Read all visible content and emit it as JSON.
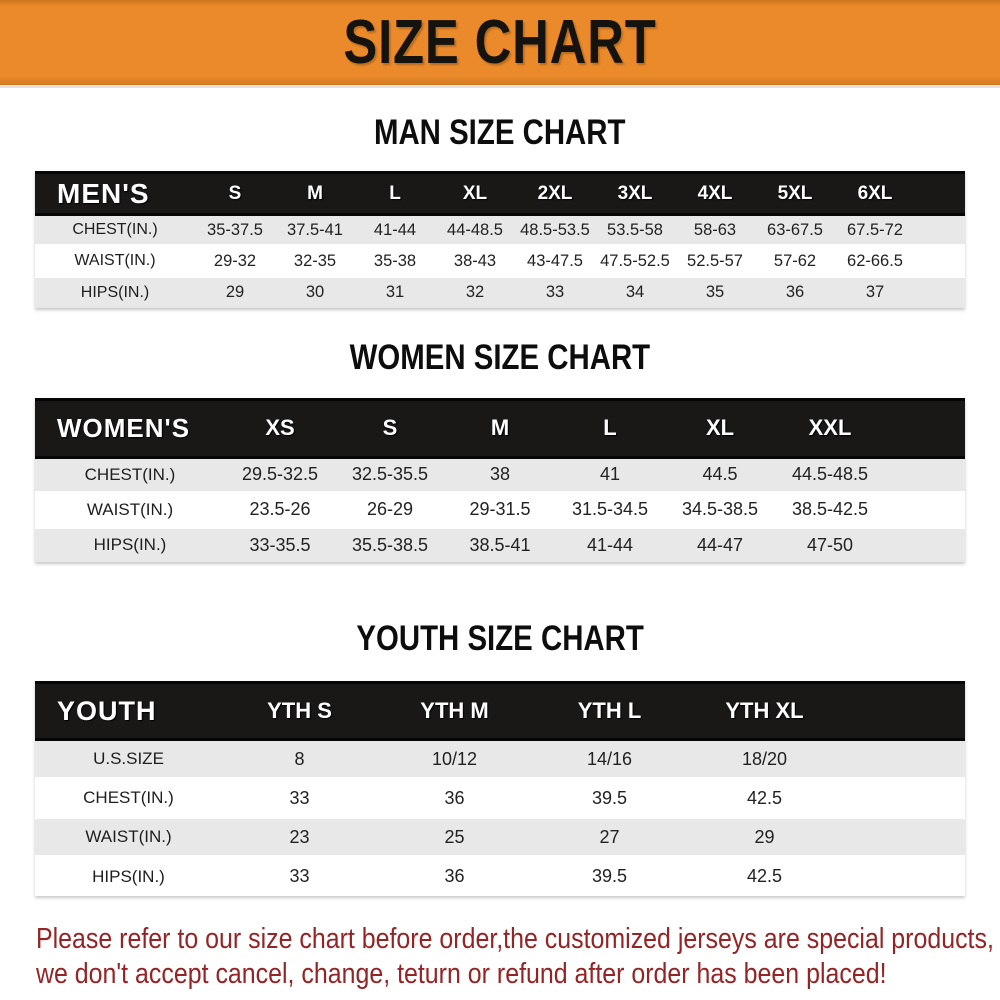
{
  "banner": {
    "title": "SIZE CHART"
  },
  "colors": {
    "banner_bg": "#EA8A2B",
    "header_band_bg": "#1a1717",
    "row_alt_bg": "#E8E8E8",
    "footer_text": "#942425"
  },
  "sections": [
    {
      "heading": "MAN SIZE CHART",
      "table": {
        "corner_label": "MEN'S",
        "columns": [
          "S",
          "M",
          "L",
          "XL",
          "2XL",
          "3XL",
          "4XL",
          "5XL",
          "6XL"
        ],
        "rows": [
          {
            "label": "CHEST(IN.)",
            "values": [
              "35-37.5",
              "37.5-41",
              "41-44",
              "44-48.5",
              "48.5-53.5",
              "53.5-58",
              "58-63",
              "63-67.5",
              "67.5-72"
            ]
          },
          {
            "label": "WAIST(IN.)",
            "values": [
              "29-32",
              "32-35",
              "35-38",
              "38-43",
              "43-47.5",
              "47.5-52.5",
              "52.5-57",
              "57-62",
              "62-66.5"
            ]
          },
          {
            "label": "HIPS(IN.)",
            "values": [
              "29",
              "30",
              "31",
              "32",
              "33",
              "34",
              "35",
              "36",
              "37"
            ]
          }
        ]
      }
    },
    {
      "heading": "WOMEN SIZE CHART",
      "table": {
        "corner_label": "WOMEN'S",
        "columns": [
          "XS",
          "S",
          "M",
          "L",
          "XL",
          "XXL"
        ],
        "rows": [
          {
            "label": "CHEST(IN.)",
            "values": [
              "29.5-32.5",
              "32.5-35.5",
              "38",
              "41",
              "44.5",
              "44.5-48.5"
            ]
          },
          {
            "label": "WAIST(IN.)",
            "values": [
              "23.5-26",
              "26-29",
              "29-31.5",
              "31.5-34.5",
              "34.5-38.5",
              "38.5-42.5"
            ]
          },
          {
            "label": "HIPS(IN.)",
            "values": [
              "33-35.5",
              "35.5-38.5",
              "38.5-41",
              "41-44",
              "44-47",
              "47-50"
            ]
          }
        ]
      }
    },
    {
      "heading": "YOUTH SIZE CHART",
      "table": {
        "corner_label": "YOUTH",
        "columns": [
          "YTH S",
          "YTH M",
          "YTH L",
          "YTH XL"
        ],
        "rows": [
          {
            "label": "U.S.SIZE",
            "values": [
              "8",
              "10/12",
              "14/16",
              "18/20"
            ]
          },
          {
            "label": "CHEST(IN.)",
            "values": [
              "33",
              "36",
              "39.5",
              "42.5"
            ]
          },
          {
            "label": "WAIST(IN.)",
            "values": [
              "23",
              "25",
              "27",
              "29"
            ]
          },
          {
            "label": "HIPS(IN.)",
            "values": [
              "33",
              "36",
              "39.5",
              "42.5"
            ]
          }
        ]
      }
    }
  ],
  "footer": {
    "lines": [
      "Please refer to our size chart before order,the customized jerseys are special products,",
      "we don't accept cancel, change, teturn or refund after order has been placed!"
    ]
  }
}
